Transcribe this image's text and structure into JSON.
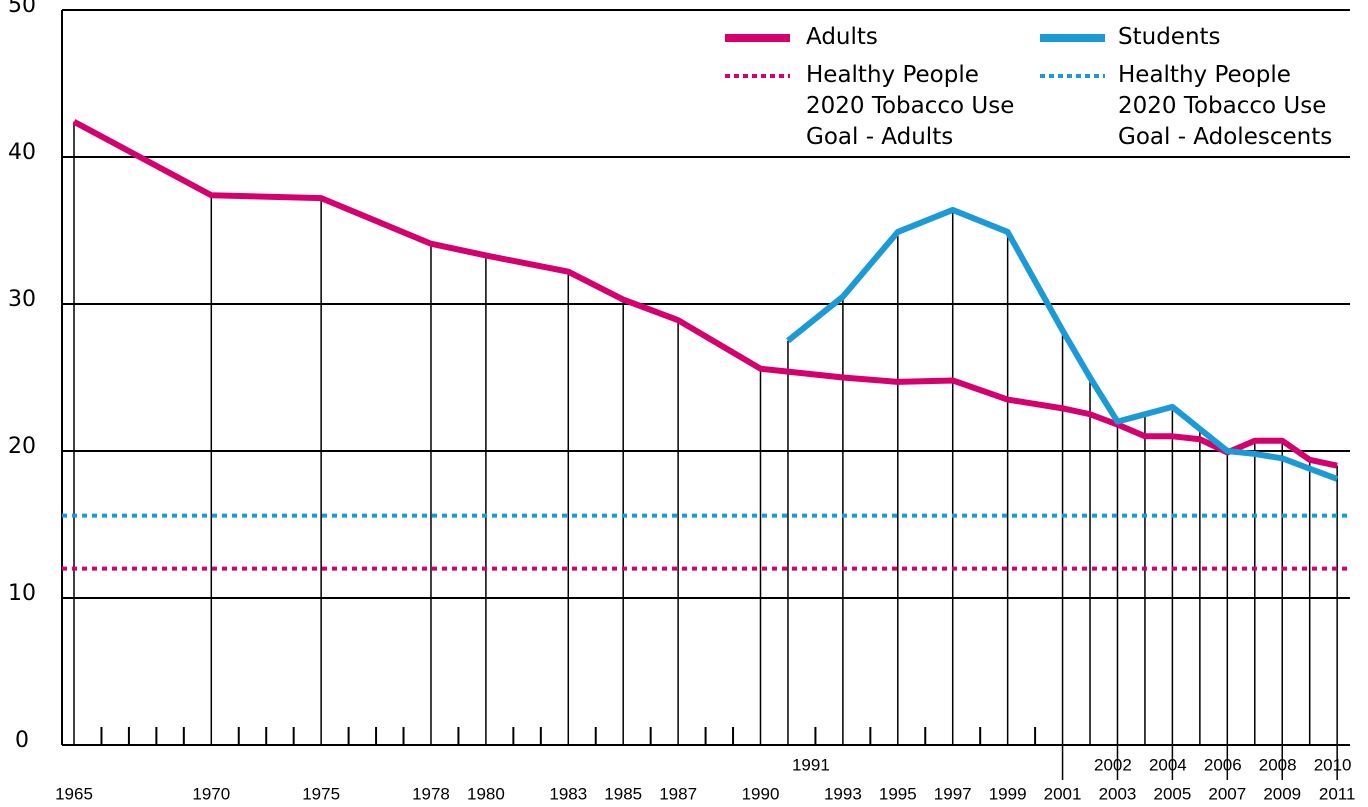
{
  "chart_data": {
    "type": "line",
    "categories": [
      "1965",
      "1970",
      "1975",
      "1978",
      "1980",
      "1983",
      "1985",
      "1987",
      "1990",
      "1991",
      "1993",
      "1995",
      "1997",
      "1999",
      "2001",
      "2002",
      "2003",
      "2004",
      "2005",
      "2006",
      "2007",
      "2008",
      "2009",
      "2010",
      "2011"
    ],
    "series": [
      {
        "name": "Adults",
        "color": "#d5006d",
        "values": [
          42.4,
          37.4,
          37.2,
          34.1,
          33.3,
          32.2,
          30.3,
          28.9,
          25.6,
          25.4,
          25.0,
          24.7,
          24.8,
          23.5,
          22.9,
          22.5,
          21.8,
          21.0,
          21.0,
          20.8,
          19.9,
          20.7,
          20.7,
          19.4,
          19.0
        ]
      },
      {
        "name": "Students",
        "color": "#1b9ad6",
        "values": [
          null,
          null,
          null,
          null,
          null,
          null,
          null,
          null,
          null,
          27.5,
          30.5,
          34.9,
          36.4,
          34.9,
          28.2,
          25.0,
          22.0,
          22.5,
          23.0,
          21.5,
          20.0,
          19.8,
          19.5,
          18.8,
          18.1
        ]
      }
    ],
    "goals": [
      {
        "name": "Healthy People 2020 Tobacco Use Goal - Adults",
        "color": "#d5006d",
        "value": 12
      },
      {
        "name": "Healthy People 2020 Tobacco Use Goal - Adolescents",
        "color": "#1b9ad6",
        "value": 15.6
      }
    ],
    "ylim": [
      0,
      50
    ],
    "yticks": [
      0,
      10,
      20,
      30,
      40,
      50
    ],
    "grid": true
  }
}
